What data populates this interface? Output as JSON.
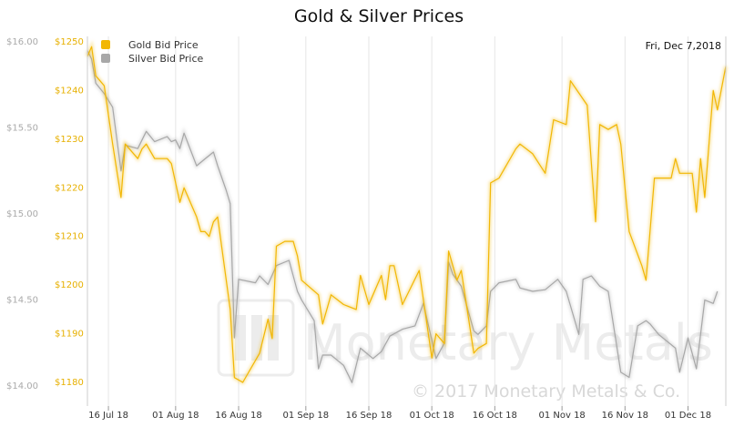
{
  "chart_data": {
    "type": "line",
    "title": "Gold & Silver Prices",
    "date_label": "Fri, Dec 7,2018",
    "watermark": {
      "brand": "Monetary Metals",
      "copyright": "© 2017 Monetary Metals & Co."
    },
    "legend": {
      "placement": "top-left"
    },
    "grid": {
      "vertical": true,
      "horizontal": false
    },
    "x_tick_labels": [
      "16 Jul 18",
      "01 Aug 18",
      "16 Aug 18",
      "01 Sep 18",
      "16 Sep 18",
      "01 Oct 18",
      "16 Oct 18",
      "01 Nov 18",
      "16 Nov 18",
      "01 Dec 18"
    ],
    "x_range": [
      "2018-07-11",
      "2018-12-07"
    ],
    "y_axes": {
      "silver": {
        "ticks": [
          "$14.00",
          "$14.50",
          "$15.00",
          "$15.50",
          "$16.00"
        ],
        "ylim": [
          14.0,
          16.0
        ],
        "color": "#aaaaaa"
      },
      "gold": {
        "ticks": [
          "$1180",
          "$1190",
          "$1200",
          "$1210",
          "$1220",
          "$1230",
          "$1240",
          "$1250"
        ],
        "ylim": [
          1178,
          1251
        ],
        "color": "#e7b000"
      }
    },
    "series": [
      {
        "name": "Gold Bid Price",
        "color": "#f2b705",
        "axis": "gold",
        "points": [
          [
            "2018-07-11",
            1247
          ],
          [
            "2018-07-12",
            1249
          ],
          [
            "2018-07-13",
            1243
          ],
          [
            "2018-07-14",
            1242
          ],
          [
            "2018-07-15",
            1241
          ],
          [
            "2018-07-17",
            1229
          ],
          [
            "2018-07-19",
            1218
          ],
          [
            "2018-07-20",
            1229
          ],
          [
            "2018-07-23",
            1226
          ],
          [
            "2018-07-24",
            1228
          ],
          [
            "2018-07-25",
            1229
          ],
          [
            "2018-07-27",
            1226
          ],
          [
            "2018-07-30",
            1226
          ],
          [
            "2018-07-31",
            1225
          ],
          [
            "2018-08-02",
            1217
          ],
          [
            "2018-08-03",
            1220
          ],
          [
            "2018-08-06",
            1214
          ],
          [
            "2018-08-07",
            1211
          ],
          [
            "2018-08-08",
            1211
          ],
          [
            "2018-08-09",
            1210
          ],
          [
            "2018-08-10",
            1213
          ],
          [
            "2018-08-11",
            1214
          ],
          [
            "2018-08-14",
            1195
          ],
          [
            "2018-08-15",
            1181
          ],
          [
            "2018-08-17",
            1180
          ],
          [
            "2018-08-21",
            1186
          ],
          [
            "2018-08-23",
            1193
          ],
          [
            "2018-08-24",
            1189
          ],
          [
            "2018-08-25",
            1208
          ],
          [
            "2018-08-27",
            1209
          ],
          [
            "2018-08-29",
            1209
          ],
          [
            "2018-08-30",
            1206
          ],
          [
            "2018-08-31",
            1201
          ],
          [
            "2018-09-04",
            1198
          ],
          [
            "2018-09-05",
            1192
          ],
          [
            "2018-09-07",
            1198
          ],
          [
            "2018-09-10",
            1196
          ],
          [
            "2018-09-13",
            1195
          ],
          [
            "2018-09-14",
            1202
          ],
          [
            "2018-09-16",
            1196
          ],
          [
            "2018-09-19",
            1202
          ],
          [
            "2018-09-20",
            1197
          ],
          [
            "2018-09-21",
            1204
          ],
          [
            "2018-09-22",
            1204
          ],
          [
            "2018-09-24",
            1196
          ],
          [
            "2018-09-28",
            1203
          ],
          [
            "2018-10-01",
            1185
          ],
          [
            "2018-10-02",
            1190
          ],
          [
            "2018-10-04",
            1188
          ],
          [
            "2018-10-05",
            1207
          ],
          [
            "2018-10-07",
            1201
          ],
          [
            "2018-10-08",
            1203
          ],
          [
            "2018-10-11",
            1186
          ],
          [
            "2018-10-12",
            1187
          ],
          [
            "2018-10-14",
            1188
          ],
          [
            "2018-10-15",
            1221
          ],
          [
            "2018-10-17",
            1222
          ],
          [
            "2018-10-21",
            1228
          ],
          [
            "2018-10-22",
            1229
          ],
          [
            "2018-10-25",
            1227
          ],
          [
            "2018-10-28",
            1223
          ],
          [
            "2018-10-30",
            1234
          ],
          [
            "2018-11-02",
            1233
          ],
          [
            "2018-11-03",
            1242
          ],
          [
            "2018-11-07",
            1237
          ],
          [
            "2018-11-09",
            1213
          ],
          [
            "2018-11-10",
            1233
          ],
          [
            "2018-11-12",
            1232
          ],
          [
            "2018-11-14",
            1233
          ],
          [
            "2018-11-15",
            1229
          ],
          [
            "2018-11-17",
            1211
          ],
          [
            "2018-11-20",
            1204
          ],
          [
            "2018-11-21",
            1201
          ],
          [
            "2018-11-23",
            1222
          ],
          [
            "2018-11-27",
            1222
          ],
          [
            "2018-11-28",
            1226
          ],
          [
            "2018-11-29",
            1223
          ],
          [
            "2018-12-02",
            1223
          ],
          [
            "2018-12-03",
            1215
          ],
          [
            "2018-12-04",
            1226
          ],
          [
            "2018-12-05",
            1218
          ],
          [
            "2018-12-07",
            1240
          ],
          [
            "2018-12-08",
            1236
          ],
          [
            "2018-12-10",
            1245
          ]
        ]
      },
      {
        "name": "Silver Bid Price",
        "color": "#a8a8a8",
        "axis": "silver",
        "points": [
          [
            "2018-07-11",
            15.95
          ],
          [
            "2018-07-12",
            15.9
          ],
          [
            "2018-07-13",
            15.76
          ],
          [
            "2018-07-15",
            15.7
          ],
          [
            "2018-07-17",
            15.62
          ],
          [
            "2018-07-19",
            15.25
          ],
          [
            "2018-07-20",
            15.4
          ],
          [
            "2018-07-23",
            15.38
          ],
          [
            "2018-07-25",
            15.48
          ],
          [
            "2018-07-27",
            15.42
          ],
          [
            "2018-07-30",
            15.45
          ],
          [
            "2018-07-31",
            15.42
          ],
          [
            "2018-08-01",
            15.43
          ],
          [
            "2018-08-02",
            15.38
          ],
          [
            "2018-08-03",
            15.47
          ],
          [
            "2018-08-06",
            15.28
          ],
          [
            "2018-08-08",
            15.32
          ],
          [
            "2018-08-10",
            15.36
          ],
          [
            "2018-08-11",
            15.28
          ],
          [
            "2018-08-13",
            15.14
          ],
          [
            "2018-08-14",
            15.06
          ],
          [
            "2018-08-15",
            14.28
          ],
          [
            "2018-08-16",
            14.62
          ],
          [
            "2018-08-20",
            14.6
          ],
          [
            "2018-08-21",
            14.64
          ],
          [
            "2018-08-23",
            14.59
          ],
          [
            "2018-08-25",
            14.7
          ],
          [
            "2018-08-28",
            14.73
          ],
          [
            "2018-08-30",
            14.55
          ],
          [
            "2018-08-31",
            14.5
          ],
          [
            "2018-09-03",
            14.38
          ],
          [
            "2018-09-04",
            14.1
          ],
          [
            "2018-09-05",
            14.18
          ],
          [
            "2018-09-07",
            14.18
          ],
          [
            "2018-09-10",
            14.12
          ],
          [
            "2018-09-12",
            14.02
          ],
          [
            "2018-09-14",
            14.22
          ],
          [
            "2018-09-17",
            14.16
          ],
          [
            "2018-09-19",
            14.2
          ],
          [
            "2018-09-21",
            14.29
          ],
          [
            "2018-09-24",
            14.33
          ],
          [
            "2018-09-27",
            14.35
          ],
          [
            "2018-09-29",
            14.48
          ],
          [
            "2018-10-02",
            14.16
          ],
          [
            "2018-10-04",
            14.25
          ],
          [
            "2018-10-05",
            14.72
          ],
          [
            "2018-10-06",
            14.65
          ],
          [
            "2018-10-08",
            14.58
          ],
          [
            "2018-10-11",
            14.32
          ],
          [
            "2018-10-12",
            14.3
          ],
          [
            "2018-10-14",
            14.35
          ],
          [
            "2018-10-15",
            14.55
          ],
          [
            "2018-10-17",
            14.6
          ],
          [
            "2018-10-21",
            14.62
          ],
          [
            "2018-10-22",
            14.57
          ],
          [
            "2018-10-25",
            14.55
          ],
          [
            "2018-10-28",
            14.56
          ],
          [
            "2018-10-31",
            14.62
          ],
          [
            "2018-11-02",
            14.55
          ],
          [
            "2018-11-05",
            14.3
          ],
          [
            "2018-11-06",
            14.62
          ],
          [
            "2018-11-08",
            14.64
          ],
          [
            "2018-11-10",
            14.58
          ],
          [
            "2018-11-12",
            14.55
          ],
          [
            "2018-11-15",
            14.08
          ],
          [
            "2018-11-17",
            14.05
          ],
          [
            "2018-11-19",
            14.35
          ],
          [
            "2018-11-21",
            14.38
          ],
          [
            "2018-11-22",
            14.36
          ],
          [
            "2018-11-24",
            14.3
          ],
          [
            "2018-11-28",
            14.22
          ],
          [
            "2018-11-29",
            14.08
          ],
          [
            "2018-12-01",
            14.28
          ],
          [
            "2018-12-03",
            14.1
          ],
          [
            "2018-12-05",
            14.5
          ],
          [
            "2018-12-07",
            14.48
          ],
          [
            "2018-12-08",
            14.55
          ]
        ]
      }
    ]
  }
}
